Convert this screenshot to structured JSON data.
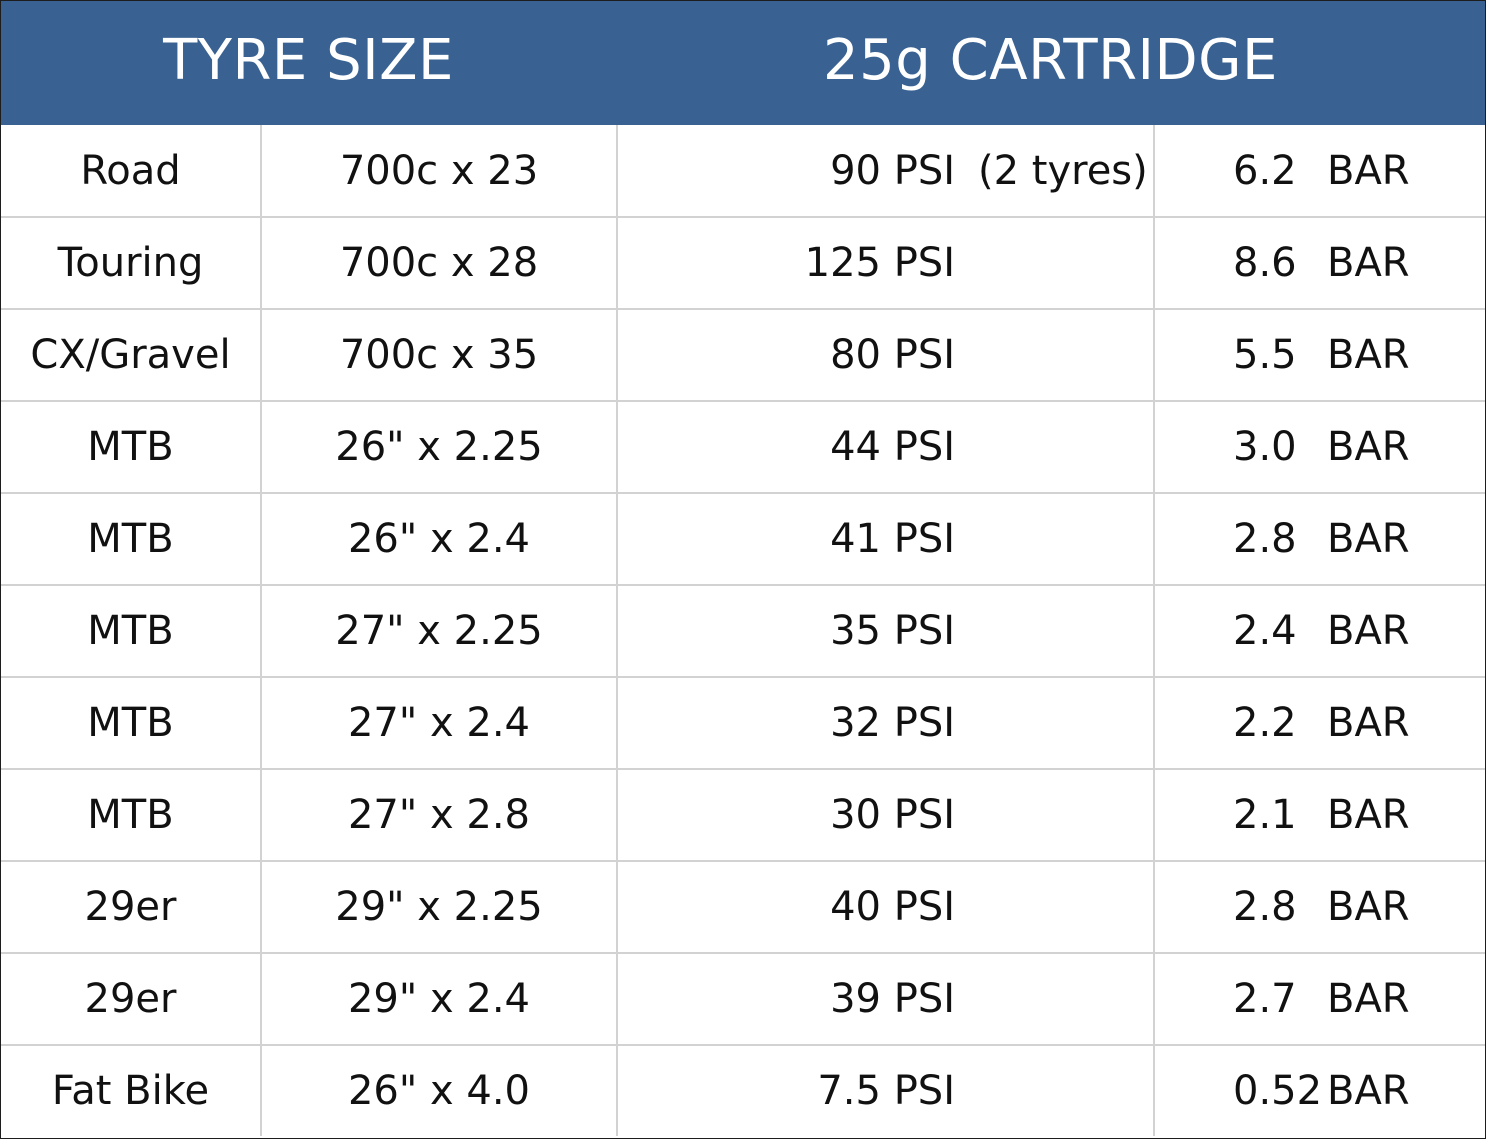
{
  "header": {
    "tyre_size": "TYRE SIZE",
    "cartridge": "25g CARTRIDGE"
  },
  "rows": [
    {
      "type": "Road",
      "size": "700c x 23",
      "psi": "90 PSI",
      "note": "(2 tyres)",
      "bar": "6.2",
      "unit": "BAR"
    },
    {
      "type": "Touring",
      "size": "700c x 28",
      "psi": "125 PSI",
      "note": "",
      "bar": "8.6",
      "unit": "BAR"
    },
    {
      "type": "CX/Gravel",
      "size": "700c x 35",
      "psi": "80 PSI",
      "note": "",
      "bar": "5.5",
      "unit": "BAR"
    },
    {
      "type": "MTB",
      "size": "26\" x 2.25",
      "psi": "44 PSI",
      "note": "",
      "bar": "3.0",
      "unit": "BAR"
    },
    {
      "type": "MTB",
      "size": "26\" x 2.4",
      "psi": "41 PSI",
      "note": "",
      "bar": "2.8",
      "unit": "BAR"
    },
    {
      "type": "MTB",
      "size": "27\" x 2.25",
      "psi": "35 PSI",
      "note": "",
      "bar": "2.4",
      "unit": "BAR"
    },
    {
      "type": "MTB",
      "size": "27\" x 2.4",
      "psi": "32 PSI",
      "note": "",
      "bar": "2.2",
      "unit": "BAR"
    },
    {
      "type": "MTB",
      "size": "27\" x 2.8",
      "psi": "30 PSI",
      "note": "",
      "bar": "2.1",
      "unit": "BAR"
    },
    {
      "type": "29er",
      "size": "29\" x 2.25",
      "psi": "40 PSI",
      "note": "",
      "bar": "2.8",
      "unit": "BAR"
    },
    {
      "type": "29er",
      "size": "29\" x 2.4",
      "psi": "39 PSI",
      "note": "",
      "bar": "2.7",
      "unit": "BAR"
    },
    {
      "type": "Fat Bike",
      "size": "26\" x 4.0",
      "psi": "7.5 PSI",
      "note": "",
      "bar": "0.52",
      "unit": "BAR"
    }
  ]
}
